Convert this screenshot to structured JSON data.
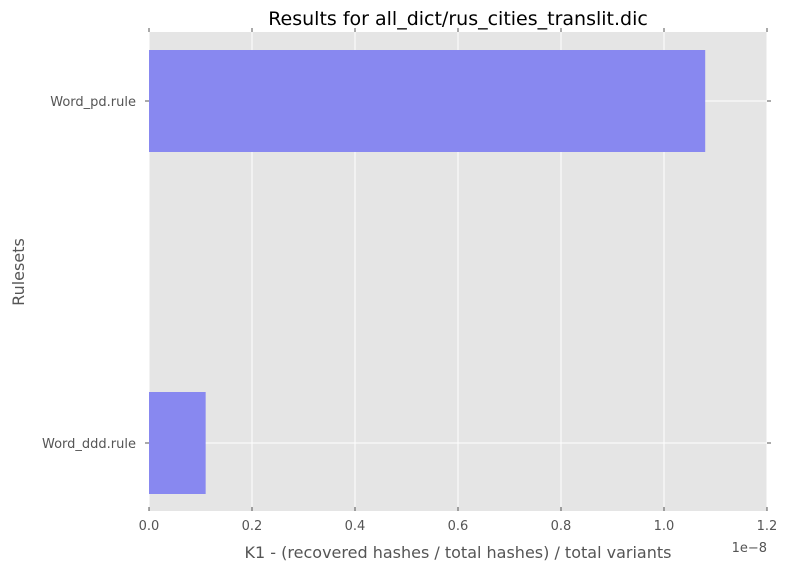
{
  "chart_data": {
    "type": "bar",
    "orientation": "horizontal",
    "title": "Results for all_dict/rus_cities_translit.dic",
    "xlabel": "K1 - (recovered hashes / total hashes) / total variants",
    "ylabel": "Rulesets",
    "x_scale_offset_label": "1e−8",
    "xlim": [
      0,
      1.2
    ],
    "x_ticks": [
      0.0,
      0.2,
      0.4,
      0.6,
      0.8,
      1.0,
      1.2
    ],
    "x_tick_labels": [
      "0.0",
      "0.2",
      "0.4",
      "0.6",
      "0.8",
      "1.0",
      "1.2"
    ],
    "categories": [
      "Word_pd.rule",
      "Word_ddd.rule"
    ],
    "values": [
      1.08,
      0.11
    ],
    "value_multiplier": 1e-08,
    "grid": true,
    "colors": {
      "bar": "#8888f0",
      "bar_alpha": 1,
      "plot_background": "#e5e5e5",
      "grid": "#ffffff",
      "text": "#555555",
      "title_text": "#000000"
    }
  }
}
